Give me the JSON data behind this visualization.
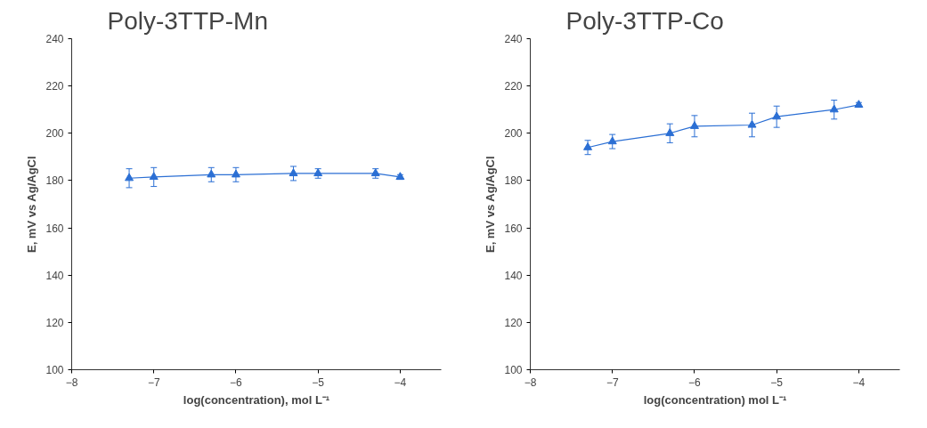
{
  "chart_data": [
    {
      "type": "line",
      "title": "Poly-3TTP-Mn",
      "xlabel": "log(concentration), mol L⁻¹",
      "ylabel": "E, mV vs Ag/AgCl",
      "x": [
        -7.3,
        -7,
        -6.3,
        -6,
        -5.3,
        -5,
        -4.3,
        -4
      ],
      "series": [
        {
          "color": "#2b6fd4",
          "values": [
            181,
            181.5,
            182.5,
            182.5,
            183,
            183,
            183,
            181.5
          ],
          "errors": [
            4,
            4,
            3,
            3,
            3,
            2,
            2,
            1
          ]
        }
      ],
      "xlim": [
        -8,
        -3.5
      ],
      "xticks": [
        -8,
        -7,
        -6,
        -5,
        -4
      ],
      "ylim": [
        100,
        240
      ],
      "yticks": [
        100,
        120,
        140,
        160,
        180,
        200,
        220,
        240
      ],
      "marker": "triangle",
      "line_style": "solid"
    },
    {
      "type": "line",
      "title": "Poly-3TTP-Co",
      "xlabel": "log(concentration) mol L⁻¹",
      "ylabel": "E, mV vs Ag/AgCl",
      "x": [
        -7.3,
        -7,
        -6.3,
        -6,
        -5.3,
        -5,
        -4.3,
        -4
      ],
      "series": [
        {
          "color": "#2b6fd4",
          "values": [
            194,
            196.5,
            200,
            203,
            203.5,
            207,
            210,
            212
          ],
          "errors": [
            3,
            3,
            4,
            4.5,
            5,
            4.5,
            4,
            1
          ]
        }
      ],
      "xlim": [
        -8,
        -3.5
      ],
      "xticks": [
        -8,
        -7,
        -6,
        -5,
        -4
      ],
      "ylim": [
        100,
        240
      ],
      "yticks": [
        100,
        120,
        140,
        160,
        180,
        200,
        220,
        240
      ],
      "marker": "triangle",
      "line_style": "solid"
    }
  ]
}
